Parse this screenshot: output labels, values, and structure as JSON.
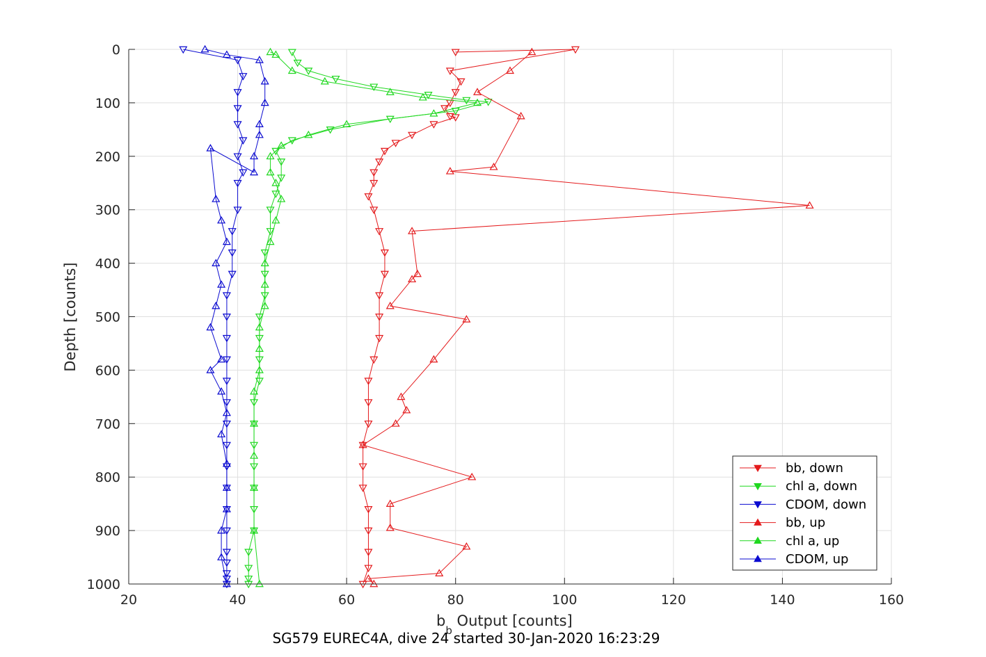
{
  "chart_data": {
    "type": "scatter",
    "title": "",
    "xlabel_main": "b",
    "xlabel_sub": "b",
    "xlabel_rest": " Output [counts]",
    "ylabel": "Depth [counts]",
    "caption": "SG579 EUREC4A, dive 24 started 30-Jan-2020 16:23:29",
    "xlim": [
      20,
      160
    ],
    "ylim": [
      0,
      1000
    ],
    "y_reversed": true,
    "grid": true,
    "legend_position": "bottom-right",
    "xticks": [
      "20",
      "40",
      "60",
      "80",
      "100",
      "120",
      "140",
      "160"
    ],
    "yticks": [
      "0",
      "100",
      "200",
      "300",
      "400",
      "500",
      "600",
      "700",
      "800",
      "900",
      "1000"
    ],
    "series": [
      {
        "name": "bb, down",
        "color": "#e41a1c",
        "marker": "triangle-down",
        "x": [
          80,
          102,
          79,
          81,
          80,
          79,
          78,
          79,
          80,
          76,
          72,
          69,
          67,
          66,
          65,
          65,
          64,
          65,
          66,
          67,
          67,
          66,
          66,
          66,
          65,
          64,
          64,
          64,
          63,
          63,
          63,
          64,
          64,
          64,
          64,
          63
        ],
        "y": [
          5,
          0,
          40,
          60,
          80,
          100,
          110,
          125,
          127,
          140,
          160,
          175,
          190,
          210,
          230,
          250,
          275,
          300,
          340,
          380,
          420,
          460,
          500,
          540,
          580,
          620,
          660,
          700,
          740,
          780,
          820,
          860,
          900,
          940,
          970,
          1000
        ]
      },
      {
        "name": "chl a, down",
        "color": "#1fd81f",
        "marker": "triangle-down",
        "x": [
          50,
          51,
          53,
          58,
          65,
          75,
          82,
          86,
          80,
          68,
          57,
          50,
          47,
          48,
          48,
          47,
          46,
          46,
          45,
          45,
          45,
          44,
          44,
          44,
          44,
          43,
          43,
          43,
          43,
          43,
          43,
          43,
          42,
          42,
          42,
          42
        ],
        "y": [
          5,
          25,
          40,
          55,
          70,
          85,
          95,
          98,
          115,
          130,
          150,
          170,
          190,
          210,
          240,
          270,
          300,
          340,
          380,
          420,
          460,
          500,
          540,
          580,
          620,
          660,
          700,
          740,
          780,
          820,
          860,
          900,
          940,
          970,
          990,
          1000
        ]
      },
      {
        "name": "CDOM, down",
        "color": "#0a0ad0",
        "marker": "triangle-down",
        "x": [
          30,
          40,
          41,
          40,
          40,
          40,
          41,
          40,
          41,
          40,
          40,
          39,
          39,
          39,
          38,
          38,
          38,
          38,
          38,
          38,
          38,
          38,
          38,
          38,
          38,
          38,
          38,
          38,
          38,
          38,
          38
        ],
        "y": [
          0,
          20,
          50,
          80,
          110,
          140,
          170,
          200,
          230,
          250,
          300,
          340,
          380,
          420,
          460,
          500,
          540,
          580,
          620,
          660,
          700,
          740,
          780,
          820,
          860,
          900,
          940,
          960,
          980,
          990,
          1000
        ]
      },
      {
        "name": "bb, up",
        "color": "#e41a1c",
        "marker": "triangle-up",
        "x": [
          94,
          90,
          84,
          92,
          87,
          79,
          145,
          72,
          73,
          72,
          68,
          82,
          76,
          70,
          71,
          69,
          63,
          83,
          68,
          68,
          82,
          77,
          64,
          65
        ],
        "y": [
          5,
          40,
          80,
          125,
          220,
          228,
          292,
          340,
          420,
          430,
          480,
          505,
          580,
          650,
          675,
          700,
          740,
          800,
          850,
          895,
          930,
          980,
          990,
          1000
        ]
      },
      {
        "name": "chl a, up",
        "color": "#1fd81f",
        "marker": "triangle-up",
        "x": [
          46,
          47,
          50,
          56,
          68,
          74,
          84,
          76,
          60,
          53,
          48,
          46,
          46,
          47,
          48,
          47,
          46,
          45,
          45,
          45,
          44,
          44,
          44,
          43,
          43,
          43,
          43,
          43,
          44
        ],
        "y": [
          5,
          10,
          40,
          60,
          80,
          90,
          100,
          120,
          140,
          160,
          180,
          200,
          230,
          250,
          280,
          320,
          360,
          400,
          440,
          480,
          520,
          560,
          600,
          640,
          700,
          760,
          820,
          900,
          1000
        ]
      },
      {
        "name": "CDOM, up",
        "color": "#0a0ad0",
        "marker": "triangle-up",
        "x": [
          34,
          38,
          44,
          45,
          45,
          44,
          44,
          43,
          43,
          35,
          36,
          37,
          38,
          36,
          37,
          36,
          35,
          37,
          35,
          37,
          38,
          37,
          38,
          38,
          38,
          37,
          37,
          38
        ],
        "y": [
          0,
          10,
          20,
          60,
          100,
          140,
          160,
          200,
          230,
          185,
          280,
          320,
          360,
          400,
          440,
          480,
          520,
          580,
          600,
          640,
          680,
          720,
          775,
          820,
          860,
          900,
          950,
          1000
        ]
      }
    ]
  }
}
